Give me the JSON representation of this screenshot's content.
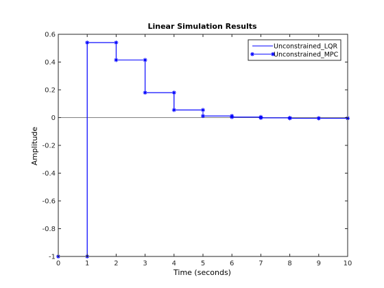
{
  "chart_data": {
    "type": "line",
    "title": "Linear Simulation Results",
    "xlabel": "Time (seconds)",
    "ylabel": "Amplitude",
    "xlim": [
      0,
      10
    ],
    "ylim": [
      -1,
      0.6
    ],
    "xticks": [
      0,
      1,
      2,
      3,
      4,
      5,
      6,
      7,
      8,
      9,
      10
    ],
    "yticks": [
      -1,
      -0.8,
      -0.6,
      -0.4,
      -0.2,
      0,
      0.2,
      0.4,
      0.6
    ],
    "ytick_labels": [
      "-1",
      "-0.8",
      "-0.6",
      "-0.4",
      "-0.2",
      "0",
      "0.2",
      "0.4",
      "0.6"
    ],
    "grid": false,
    "zero_line": true,
    "legend_position": "top-right",
    "series": [
      {
        "name": "Unconstrained_LQR",
        "style": "step",
        "marker": "none",
        "color": "#0000ff",
        "x": [
          0,
          1,
          2,
          3,
          4,
          5,
          6,
          7,
          8,
          9,
          10
        ],
        "y": [
          -1,
          0.54,
          0.415,
          0.18,
          0.055,
          0.012,
          0.004,
          -0.002,
          -0.005,
          -0.005,
          -0.005
        ]
      },
      {
        "name": "Unconstrained_MPC",
        "style": "step",
        "marker": "asterisk",
        "color": "#0000ff",
        "x": [
          0,
          1,
          2,
          3,
          4,
          5,
          6,
          7,
          8,
          9,
          10
        ],
        "y": [
          -1,
          0.54,
          0.415,
          0.18,
          0.055,
          0.012,
          0.004,
          -0.002,
          -0.005,
          -0.005,
          -0.005
        ]
      }
    ]
  }
}
